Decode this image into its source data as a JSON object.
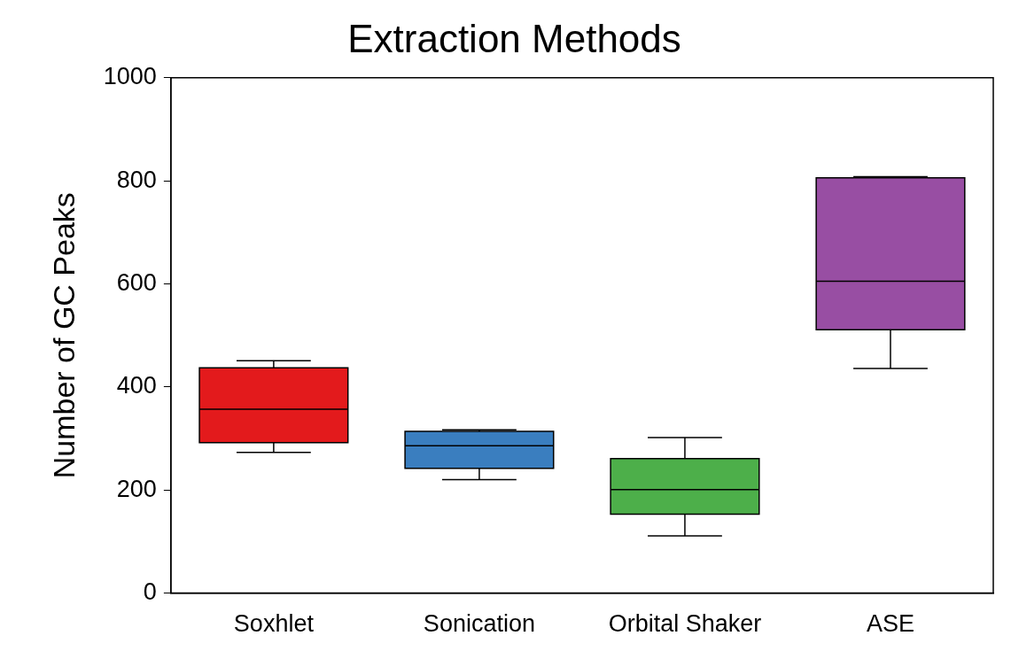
{
  "chart_data": {
    "type": "box",
    "title": "Extraction Methods",
    "ylabel": "Number of GC Peaks",
    "categories": [
      "Soxhlet",
      "Sonication",
      "Orbital Shaker",
      "ASE"
    ],
    "colors": [
      "#e31a1c",
      "#3a7ebf",
      "#4daf4a",
      "#984ea3"
    ],
    "boxes": [
      {
        "low": 273,
        "q1": 292,
        "median": 357,
        "q3": 437,
        "high": 451
      },
      {
        "low": 220,
        "q1": 242,
        "median": 286,
        "q3": 314,
        "high": 317
      },
      {
        "low": 111,
        "q1": 153,
        "median": 201,
        "q3": 261,
        "high": 302
      },
      {
        "low": 436,
        "q1": 511,
        "median": 605,
        "q3": 806,
        "high": 808
      }
    ],
    "ylim": [
      0,
      1000
    ],
    "yticks": [
      0,
      200,
      400,
      600,
      800,
      1000
    ],
    "grid": false,
    "legend": false
  }
}
